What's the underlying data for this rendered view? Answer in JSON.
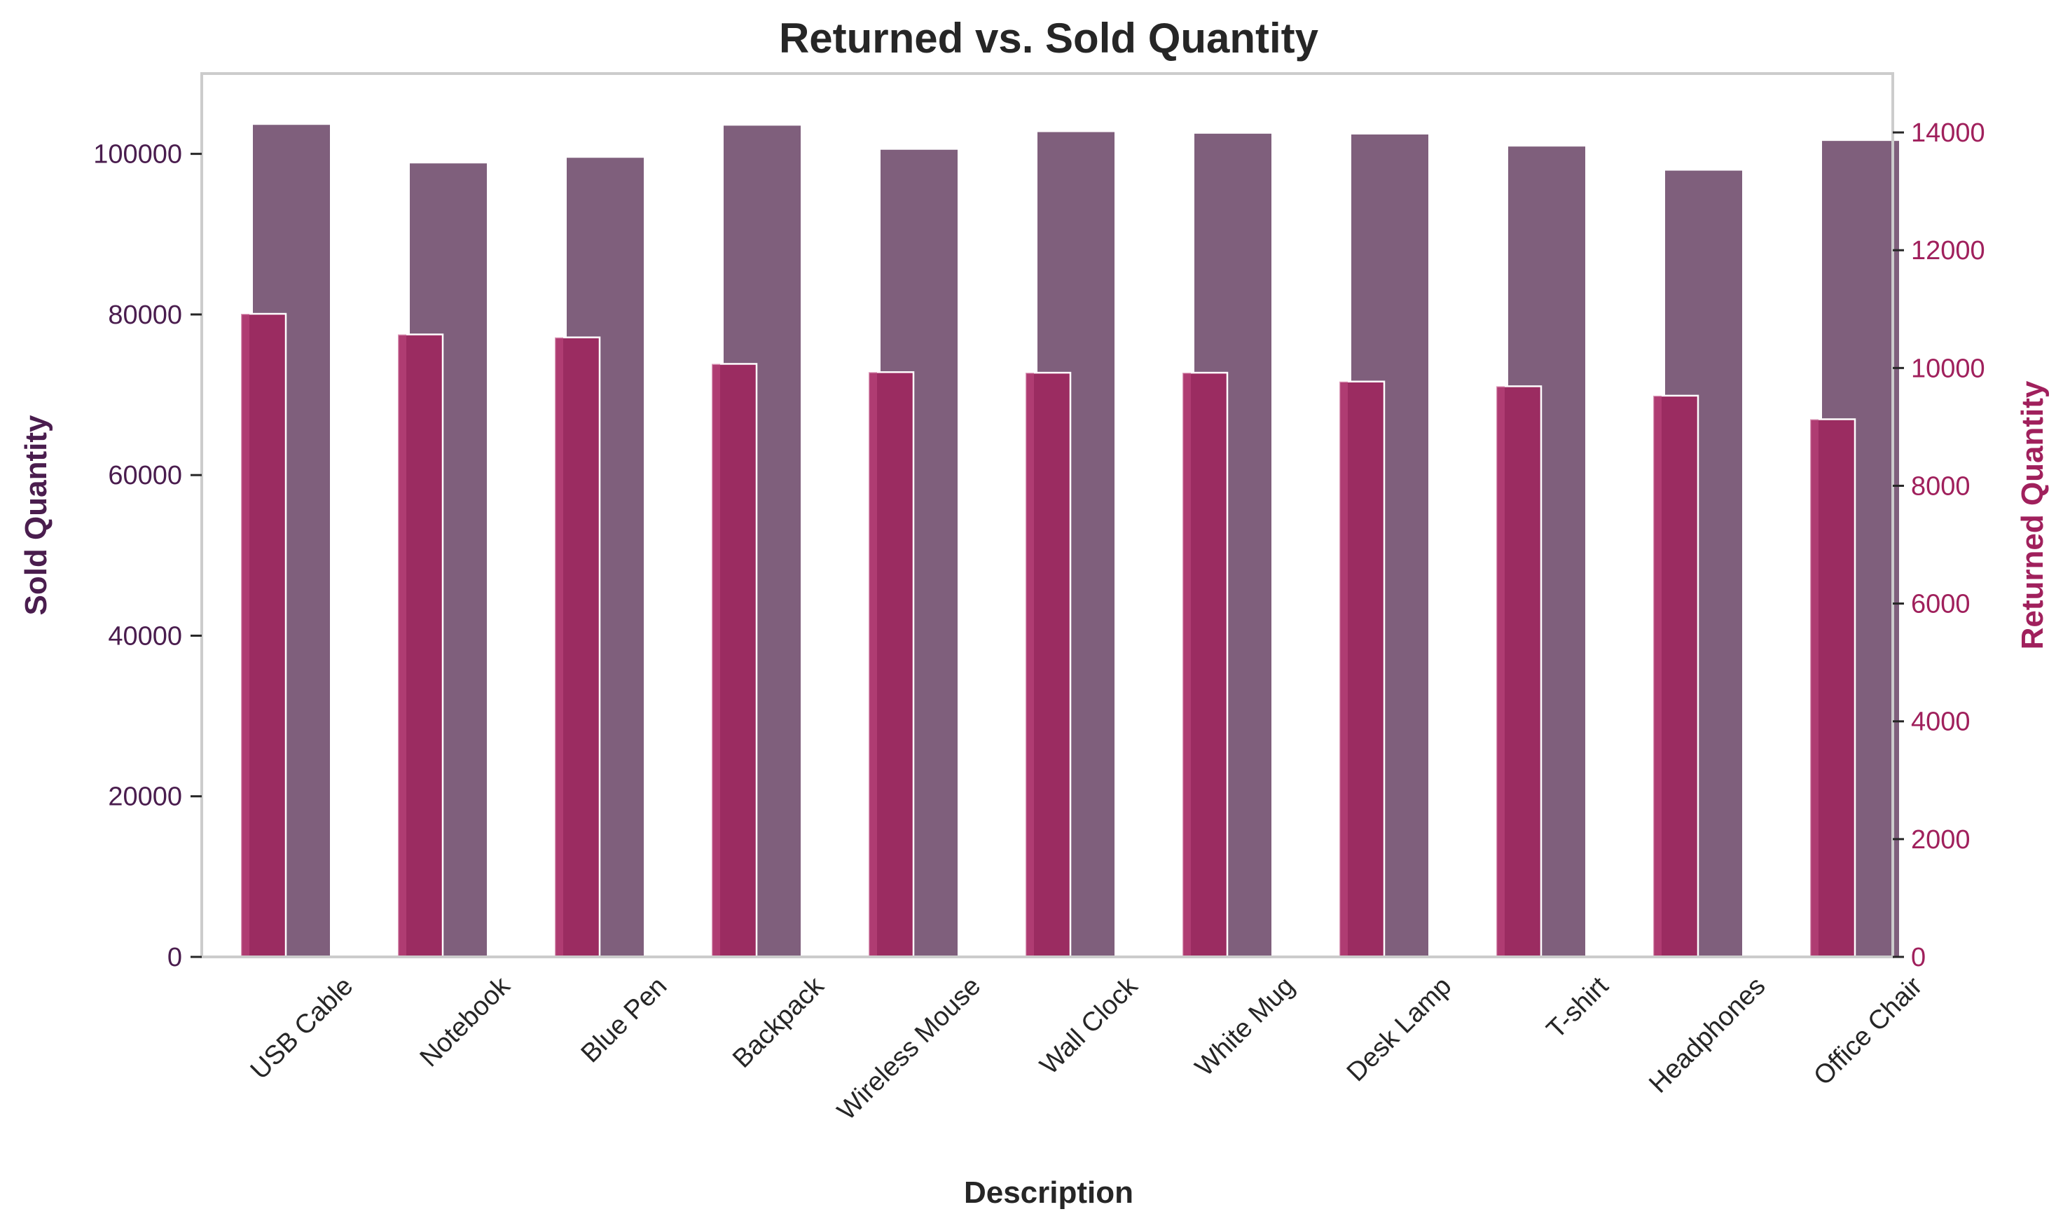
{
  "chart_data": {
    "type": "bar",
    "title": "Returned vs. Sold Quantity",
    "xlabel": "Description",
    "ylabel_left": "Sold Quantity",
    "ylabel_right": "Returned Quantity",
    "categories": [
      "USB Cable",
      "Notebook",
      "Blue Pen",
      "Backpack",
      "Wireless Mouse",
      "Wall Clock",
      "White Mug",
      "Desk Lamp",
      "T-shirt",
      "Headphones",
      "Office Chair"
    ],
    "series": [
      {
        "name": "Sold Quantity",
        "axis": "left",
        "color": "#7f5f7c",
        "values": [
          103700,
          98900,
          99600,
          103600,
          100600,
          102800,
          102600,
          102500,
          101000,
          98000,
          101700
        ]
      },
      {
        "name": "Returned Quantity",
        "axis": "right",
        "color": "#9b2c61",
        "values": [
          10920,
          10570,
          10520,
          10070,
          9930,
          9920,
          9920,
          9770,
          9690,
          9530,
          9130
        ]
      }
    ],
    "ylim_left": [
      0,
      110000
    ],
    "ylim_right": [
      0,
      15000
    ],
    "yticks_left": [
      0,
      20000,
      40000,
      60000,
      80000,
      100000
    ],
    "yticks_right": [
      0,
      2000,
      4000,
      6000,
      8000,
      10000,
      12000,
      14000
    ],
    "grid": false,
    "colors": {
      "left_axis": "#4a1d4e",
      "right_axis": "#a0205c",
      "text": "#262626",
      "spine": "#cccccc"
    }
  }
}
